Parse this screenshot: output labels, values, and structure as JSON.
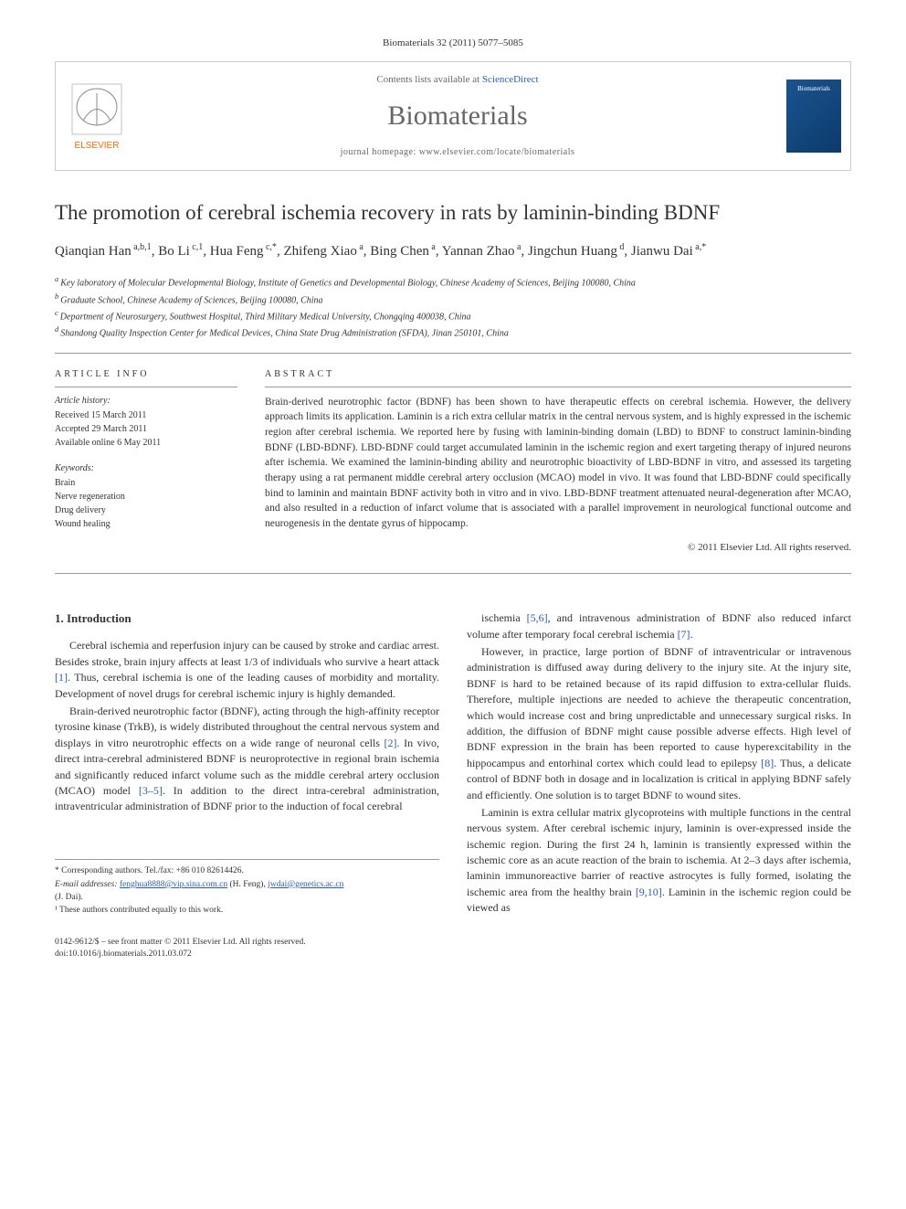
{
  "citation": "Biomaterials 32 (2011) 5077–5085",
  "header": {
    "contents_prefix": "Contents lists available at ",
    "contents_link": "ScienceDirect",
    "journal": "Biomaterials",
    "homepage_prefix": "journal homepage: ",
    "homepage": "www.elsevier.com/locate/biomaterials",
    "cover_label": "Biomaterials"
  },
  "title": "The promotion of cerebral ischemia recovery in rats by laminin-binding BDNF",
  "authors": [
    {
      "name": "Qianqian Han",
      "sup": "a,b,1"
    },
    {
      "name": "Bo Li",
      "sup": "c,1"
    },
    {
      "name": "Hua Feng",
      "sup": "c,*"
    },
    {
      "name": "Zhifeng Xiao",
      "sup": "a"
    },
    {
      "name": "Bing Chen",
      "sup": "a"
    },
    {
      "name": "Yannan Zhao",
      "sup": "a"
    },
    {
      "name": "Jingchun Huang",
      "sup": "d"
    },
    {
      "name": "Jianwu Dai",
      "sup": "a,*"
    }
  ],
  "affiliations": [
    {
      "key": "a",
      "text": "Key laboratory of Molecular Developmental Biology, Institute of Genetics and Developmental Biology, Chinese Academy of Sciences, Beijing 100080, China"
    },
    {
      "key": "b",
      "text": "Graduate School, Chinese Academy of Sciences, Beijing 100080, China"
    },
    {
      "key": "c",
      "text": "Department of Neurosurgery, Southwest Hospital, Third Military Medical University, Chongqing 400038, China"
    },
    {
      "key": "d",
      "text": "Shandong Quality Inspection Center for Medical Devices, China State Drug Administration (SFDA), Jinan 250101, China"
    }
  ],
  "article_info": {
    "heading": "ARTICLE INFO",
    "history_label": "Article history:",
    "received": "Received 15 March 2011",
    "accepted": "Accepted 29 March 2011",
    "available": "Available online 6 May 2011",
    "keywords_label": "Keywords:",
    "keywords": [
      "Brain",
      "Nerve regeneration",
      "Drug delivery",
      "Wound healing"
    ]
  },
  "abstract": {
    "heading": "ABSTRACT",
    "text": "Brain-derived neurotrophic factor (BDNF) has been shown to have therapeutic effects on cerebral ischemia. However, the delivery approach limits its application. Laminin is a rich extra cellular matrix in the central nervous system, and is highly expressed in the ischemic region after cerebral ischemia. We reported here by fusing with laminin-binding domain (LBD) to BDNF to construct laminin-binding BDNF (LBD-BDNF). LBD-BDNF could target accumulated laminin in the ischemic region and exert targeting therapy of injured neurons after ischemia. We examined the laminin-binding ability and neurotrophic bioactivity of LBD-BDNF in vitro, and assessed its targeting therapy using a rat permanent middle cerebral artery occlusion (MCAO) model in vivo. It was found that LBD-BDNF could specifically bind to laminin and maintain BDNF activity both in vitro and in vivo. LBD-BDNF treatment attenuated neural-degeneration after MCAO, and also resulted in a reduction of infarct volume that is associated with a parallel improvement in neurological functional outcome and neurogenesis in the dentate gyrus of hippocamp.",
    "copyright": "© 2011 Elsevier Ltd. All rights reserved."
  },
  "sections": {
    "intro_heading": "1. Introduction",
    "paragraphs_left": [
      "Cerebral ischemia and reperfusion injury can be caused by stroke and cardiac arrest. Besides stroke, brain injury affects at least 1/3 of individuals who survive a heart attack [1]. Thus, cerebral ischemia is one of the leading causes of morbidity and mortality. Development of novel drugs for cerebral ischemic injury is highly demanded.",
      "Brain-derived neurotrophic factor (BDNF), acting through the high-affinity receptor tyrosine kinase (TrkB), is widely distributed throughout the central nervous system and displays in vitro neurotrophic effects on a wide range of neuronal cells [2]. In vivo, direct intra-cerebral administered BDNF is neuroprotective in regional brain ischemia and significantly reduced infarct volume such as the middle cerebral artery occlusion (MCAO) model [3–5]. In addition to the direct intra-cerebral administration, intraventricular administration of BDNF prior to the induction of focal cerebral"
    ],
    "paragraphs_right": [
      "ischemia [5,6], and intravenous administration of BDNF also reduced infarct volume after temporary focal cerebral ischemia [7].",
      "However, in practice, large portion of BDNF of intraventricular or intravenous administration is diffused away during delivery to the injury site. At the injury site, BDNF is hard to be retained because of its rapid diffusion to extra-cellular fluids. Therefore, multiple injections are needed to achieve the therapeutic concentration, which would increase cost and bring unpredictable and unnecessary surgical risks. In addition, the diffusion of BDNF might cause possible adverse effects. High level of BDNF expression in the brain has been reported to cause hyperexcitability in the hippocampus and entorhinal cortex which could lead to epilepsy [8]. Thus, a delicate control of BDNF both in dosage and in localization is critical in applying BDNF safely and efficiently. One solution is to target BDNF to wound sites.",
      "Laminin is extra cellular matrix glycoproteins with multiple functions in the central nervous system. After cerebral ischemic injury, laminin is over-expressed inside the ischemic region. During the first 24 h, laminin is transiently expressed within the ischemic core as an acute reaction of the brain to ischemia. At 2–3 days after ischemia, laminin immunoreactive barrier of reactive astrocytes is fully formed, isolating the ischemic area from the healthy brain [9,10]. Laminin in the ischemic region could be viewed as"
    ]
  },
  "footnotes": {
    "corresponding": "* Corresponding authors. Tel./fax: +86 010 82614426.",
    "email_label": "E-mail addresses: ",
    "email1": "fenghua8888@vip.sina.com.cn",
    "email1_person": " (H. Feng), ",
    "email2": "jwdai@genetics.ac.cn",
    "email2_person": " (J. Dai).",
    "equal": "¹ These authors contributed equally to this work."
  },
  "bottom": {
    "line1": "0142-9612/$ – see front matter © 2011 Elsevier Ltd. All rights reserved.",
    "line2": "doi:10.1016/j.biomaterials.2011.03.072"
  },
  "colors": {
    "link": "#2a5db0",
    "text": "#333333",
    "border": "#999999",
    "elsevier_orange": "#ff6600",
    "elsevier_gray": "#888888"
  }
}
